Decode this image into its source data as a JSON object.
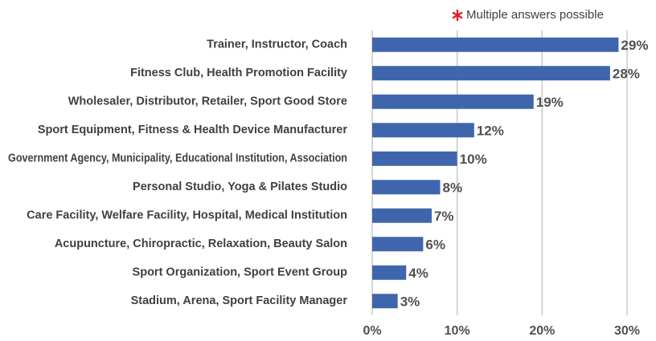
{
  "chart_data": {
    "type": "bar",
    "orientation": "horizontal",
    "annotation": "Multiple answers possible",
    "categories": [
      "Trainer, Instructor, Coach",
      "Fitness Club, Health Promotion Facility",
      "Wholesaler, Distributor, Retailer, Sport Good Store",
      "Sport Equipment, Fitness & Health Device Manufacturer",
      "Government Agency, Municipality, Educational Institution, Association",
      "Personal Studio, Yoga & Pilates Studio",
      "Care Facility, Welfare Facility, Hospital, Medical Institution",
      "Acupuncture, Chiropractic, Relaxation, Beauty Salon",
      "Sport Organization, Sport Event Group",
      "Stadium, Arena, Sport Facility Manager"
    ],
    "values": [
      29,
      28,
      19,
      12,
      10,
      8,
      7,
      6,
      4,
      3
    ],
    "value_labels": [
      "29%",
      "28%",
      "19%",
      "12%",
      "10%",
      "8%",
      "7%",
      "6%",
      "4%",
      "3%"
    ],
    "color": "#3f66ad",
    "xlim": [
      0,
      30
    ],
    "xticks": [
      {
        "value": 0,
        "label": "0%"
      },
      {
        "value": 10,
        "label": "10%"
      },
      {
        "value": 20,
        "label": "20%"
      },
      {
        "value": 30,
        "label": "30%"
      }
    ],
    "grid": true
  }
}
